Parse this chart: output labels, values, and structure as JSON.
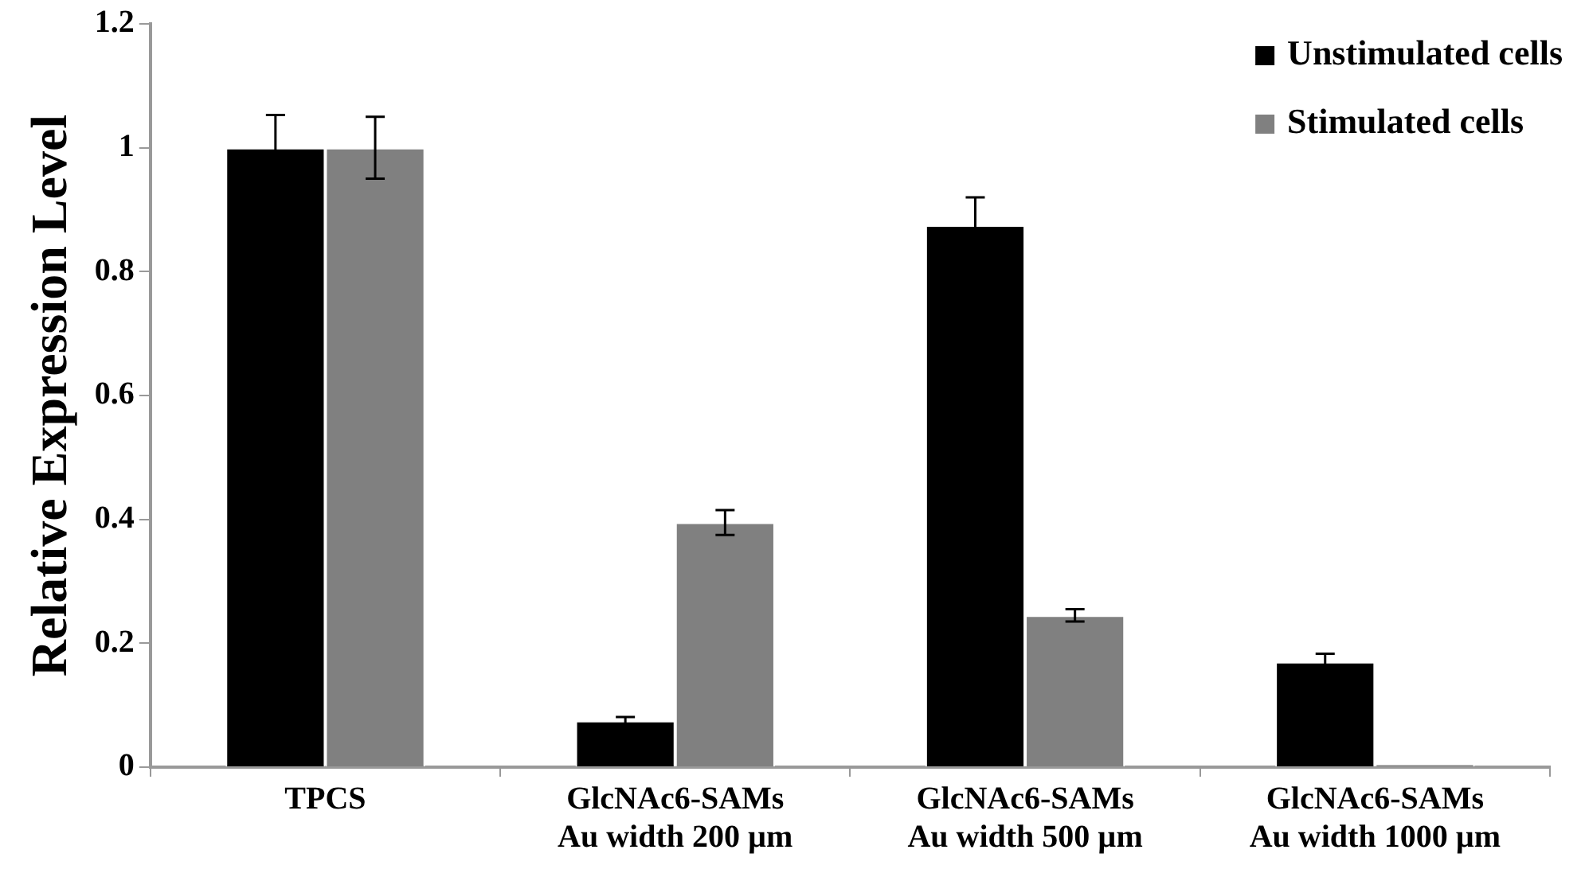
{
  "chart_data": {
    "type": "bar",
    "ylabel": "Relative Expression Level",
    "categories": [
      "TPCS",
      "GlcNAc6-SAMs\nAu width 200 µm",
      "GlcNAc6-SAMs\nAu width 500 µm",
      "GlcNAc6-SAMs\nAu width 1000 µm"
    ],
    "series": [
      {
        "name": "Unstimulated cells",
        "color": "#000000",
        "values": [
          1.0,
          0.075,
          0.875,
          0.17
        ],
        "errors": [
          0.053,
          0.006,
          0.045,
          0.013
        ]
      },
      {
        "name": "Stimulated cells",
        "color": "#808080",
        "values": [
          1.0,
          0.395,
          0.245,
          0.005
        ],
        "errors": [
          0.05,
          0.02,
          0.01,
          null
        ]
      }
    ],
    "ylim": [
      0,
      1.2
    ],
    "yticks": [
      0,
      0.2,
      0.4,
      0.6,
      0.8,
      1,
      1.2
    ],
    "legend": "top right"
  }
}
